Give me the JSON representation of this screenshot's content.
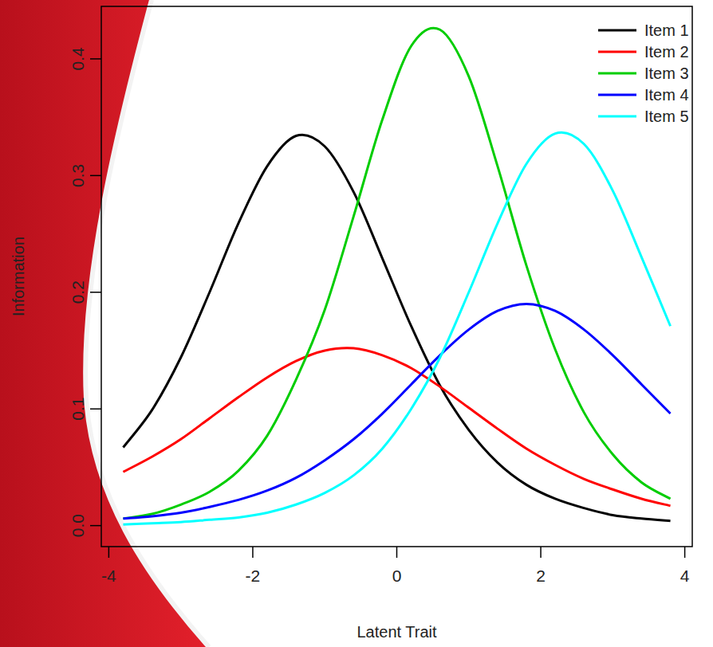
{
  "chart_data": {
    "type": "line",
    "xlabel": "Latent Trait",
    "ylabel": "Information",
    "x": [
      -3.8,
      -3.4,
      -3.0,
      -2.6,
      -2.2,
      -1.8,
      -1.4,
      -1.0,
      -0.6,
      -0.2,
      0.2,
      0.6,
      1.0,
      1.4,
      1.8,
      2.2,
      2.6,
      3.0,
      3.4,
      3.8
    ],
    "series": [
      {
        "name": "Item 1",
        "color": "#000000",
        "values": [
          0.067,
          0.099,
          0.144,
          0.2,
          0.259,
          0.308,
          0.334,
          0.325,
          0.286,
          0.229,
          0.171,
          0.12,
          0.082,
          0.054,
          0.035,
          0.023,
          0.015,
          0.009,
          0.006,
          0.004
        ]
      },
      {
        "name": "Item 2",
        "color": "#ff0000",
        "values": [
          0.046,
          0.059,
          0.074,
          0.092,
          0.11,
          0.127,
          0.141,
          0.15,
          0.152,
          0.146,
          0.135,
          0.119,
          0.101,
          0.083,
          0.066,
          0.052,
          0.04,
          0.031,
          0.023,
          0.017
        ]
      },
      {
        "name": "Item 3",
        "color": "#00cd00",
        "values": [
          0.006,
          0.01,
          0.018,
          0.029,
          0.047,
          0.077,
          0.125,
          0.185,
          0.265,
          0.348,
          0.411,
          0.425,
          0.385,
          0.308,
          0.223,
          0.151,
          0.097,
          0.061,
          0.037,
          0.023
        ]
      },
      {
        "name": "Item 4",
        "color": "#0000ff",
        "values": [
          0.006,
          0.008,
          0.011,
          0.016,
          0.022,
          0.03,
          0.041,
          0.056,
          0.074,
          0.096,
          0.121,
          0.146,
          0.168,
          0.184,
          0.19,
          0.184,
          0.168,
          0.146,
          0.121,
          0.096
        ]
      },
      {
        "name": "Item 5",
        "color": "#00ffff",
        "values": [
          0.001,
          0.002,
          0.003,
          0.005,
          0.007,
          0.011,
          0.018,
          0.028,
          0.043,
          0.066,
          0.1,
          0.144,
          0.2,
          0.259,
          0.31,
          0.336,
          0.327,
          0.287,
          0.23,
          0.171
        ]
      }
    ],
    "xlim": [
      -4.104,
      4.104
    ],
    "ylim": [
      -0.018,
      0.445
    ],
    "xticks": [
      -4,
      -2,
      0,
      2,
      4
    ],
    "yticks": [
      {
        "value": 0,
        "label": "0.0"
      },
      0.1,
      0.2,
      0.3,
      0.4
    ],
    "grid": false,
    "legend": "top-right"
  }
}
